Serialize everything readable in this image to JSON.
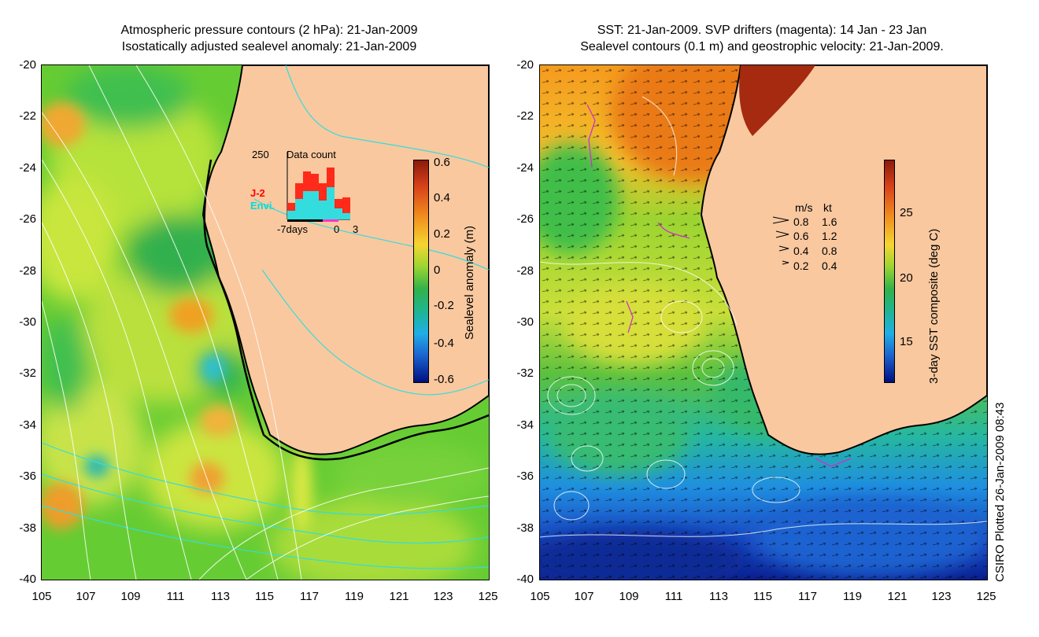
{
  "left_panel": {
    "title_line1": "Atmospheric pressure contours (2 hPa): 21-Jan-2009",
    "title_line2": "Isostatically adjusted sealevel anomaly: 21-Jan-2009",
    "colorbar_label": "Sealevel anomaly (m)",
    "colorbar_ticks": [
      "0.6",
      "0.4",
      "0.2",
      "0",
      "-0.2",
      "-0.4",
      "-0.6"
    ],
    "inset": {
      "title": "Data count",
      "ymax_label": "250",
      "series": [
        {
          "name": "J-2",
          "color": "#ff0000"
        },
        {
          "name": "Envi.",
          "color": "#00e5e5"
        }
      ],
      "x_ticks": [
        "-7days",
        "0",
        "3"
      ]
    }
  },
  "right_panel": {
    "title_line1": "SST: 21-Jan-2009. SVP drifters (magenta): 14 Jan - 23 Jan",
    "title_line2": "Sealevel contours (0.1 m) and geostrophic velocity: 21-Jan-2009.",
    "colorbar_label": "3-day SST composite (deg C)",
    "colorbar_ticks": [
      "25",
      "20",
      "15"
    ],
    "velocity_legend": {
      "header_ms": "m/s",
      "header_kt": "kt",
      "rows": [
        {
          "ms": "0.8",
          "kt": "1.6"
        },
        {
          "ms": "0.6",
          "kt": "1.2"
        },
        {
          "ms": "0.4",
          "kt": "0.8"
        },
        {
          "ms": "0.2",
          "kt": "0.4"
        }
      ]
    }
  },
  "axes": {
    "y_ticks": [
      "-20",
      "-22",
      "-24",
      "-26",
      "-28",
      "-30",
      "-32",
      "-34",
      "-36",
      "-38",
      "-40"
    ],
    "x_ticks": [
      "105",
      "107",
      "109",
      "111",
      "113",
      "115",
      "117",
      "119",
      "121",
      "123",
      "125"
    ]
  },
  "footer_credit": "CSIRO Plotted 26-Jan-2009 08:43",
  "colors": {
    "land": "#f9c89f",
    "coast": "#000000",
    "drifter": "#cc33cc"
  }
}
